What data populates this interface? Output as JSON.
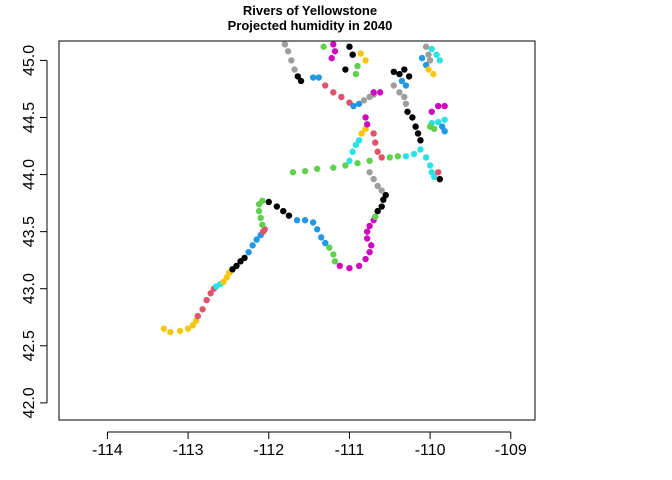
{
  "chart_data": {
    "type": "scatter",
    "title": "Rivers of Yellowstone",
    "subtitle": "Projected humidity in 2040",
    "xlabel": "",
    "ylabel": "",
    "xlim": [
      -114.6,
      -108.7
    ],
    "ylim": [
      41.85,
      45.17
    ],
    "xticks": [
      -114,
      -113,
      -112,
      -111,
      -110,
      -109
    ],
    "xtick_labels": [
      "-114",
      "-113",
      "-112",
      "-111",
      "-110",
      "-109"
    ],
    "yticks": [
      42.0,
      42.5,
      43.0,
      43.5,
      44.0,
      44.5,
      45.0
    ],
    "ytick_labels": [
      "42.0",
      "42.5",
      "43.0",
      "43.5",
      "44.0",
      "44.5",
      "45.0"
    ],
    "grid": false,
    "legend": "none",
    "color_palette": {
      "black": "#000000",
      "red": "#df536b",
      "green": "#61d04f",
      "blue": "#2297e6",
      "cyan": "#28e2e5",
      "magenta": "#cd0bbc",
      "yellow": "#f5c710",
      "gray": "#9e9e9e"
    },
    "segments": [
      {
        "color": "yellow",
        "points": [
          [
            -113.3,
            42.65
          ],
          [
            -113.22,
            42.62
          ],
          [
            -113.1,
            42.63
          ],
          [
            -113.0,
            42.65
          ],
          [
            -112.94,
            42.68
          ],
          [
            -112.9,
            42.72
          ]
        ]
      },
      {
        "color": "red",
        "points": [
          [
            -112.88,
            42.76
          ],
          [
            -112.82,
            42.82
          ],
          [
            -112.77,
            42.9
          ],
          [
            -112.72,
            42.96
          ],
          [
            -112.68,
            43.0
          ]
        ]
      },
      {
        "color": "cyan",
        "points": [
          [
            -112.65,
            43.02
          ],
          [
            -112.6,
            43.04
          ]
        ]
      },
      {
        "color": "yellow",
        "points": [
          [
            -112.56,
            43.06
          ],
          [
            -112.52,
            43.1
          ],
          [
            -112.49,
            43.14
          ]
        ]
      },
      {
        "color": "black",
        "points": [
          [
            -112.45,
            43.17
          ],
          [
            -112.4,
            43.2
          ],
          [
            -112.35,
            43.24
          ],
          [
            -112.3,
            43.27
          ]
        ]
      },
      {
        "color": "blue",
        "points": [
          [
            -112.25,
            43.32
          ],
          [
            -112.2,
            43.38
          ],
          [
            -112.15,
            43.43
          ],
          [
            -112.1,
            43.47
          ]
        ]
      },
      {
        "color": "red",
        "points": [
          [
            -112.07,
            43.5
          ],
          [
            -112.05,
            43.52
          ]
        ]
      },
      {
        "color": "green",
        "points": [
          [
            -112.08,
            43.56
          ],
          [
            -112.1,
            43.62
          ],
          [
            -112.12,
            43.68
          ],
          [
            -112.12,
            43.74
          ],
          [
            -112.08,
            43.77
          ]
        ]
      },
      {
        "color": "black",
        "points": [
          [
            -112.0,
            43.76
          ],
          [
            -111.9,
            43.72
          ],
          [
            -111.82,
            43.68
          ],
          [
            -111.75,
            43.64
          ]
        ]
      },
      {
        "color": "blue",
        "points": [
          [
            -111.65,
            43.6
          ],
          [
            -111.55,
            43.6
          ],
          [
            -111.45,
            43.58
          ],
          [
            -111.4,
            43.52
          ],
          [
            -111.35,
            43.45
          ],
          [
            -111.3,
            43.4
          ]
        ]
      },
      {
        "color": "green",
        "points": [
          [
            -111.25,
            43.36
          ],
          [
            -111.2,
            43.3
          ],
          [
            -111.18,
            43.24
          ]
        ]
      },
      {
        "color": "magenta",
        "points": [
          [
            -111.12,
            43.2
          ],
          [
            -111.0,
            43.18
          ],
          [
            -110.88,
            43.2
          ],
          [
            -110.8,
            43.26
          ],
          [
            -110.75,
            43.32
          ],
          [
            -110.73,
            43.38
          ],
          [
            -110.78,
            43.44
          ]
        ]
      },
      {
        "color": "magenta",
        "points": [
          [
            -110.78,
            43.5
          ],
          [
            -110.75,
            43.55
          ],
          [
            -110.7,
            43.6
          ]
        ]
      },
      {
        "color": "green",
        "points": [
          [
            -110.68,
            43.63
          ]
        ]
      },
      {
        "color": "black",
        "points": [
          [
            -110.65,
            43.68
          ],
          [
            -110.6,
            43.72
          ],
          [
            -110.58,
            43.78
          ],
          [
            -110.55,
            43.82
          ]
        ]
      },
      {
        "color": "gray",
        "points": [
          [
            -110.6,
            43.86
          ],
          [
            -110.65,
            43.9
          ],
          [
            -110.7,
            43.96
          ],
          [
            -110.75,
            44.02
          ]
        ]
      },
      {
        "color": "green",
        "points": [
          [
            -111.7,
            44.02
          ],
          [
            -111.55,
            44.03
          ],
          [
            -111.4,
            44.05
          ],
          [
            -111.2,
            44.06
          ],
          [
            -111.05,
            44.08
          ],
          [
            -110.9,
            44.1
          ],
          [
            -110.75,
            44.12
          ],
          [
            -110.5,
            44.15
          ],
          [
            -110.4,
            44.16
          ]
        ]
      },
      {
        "color": "cyan",
        "points": [
          [
            -110.3,
            44.16
          ],
          [
            -110.2,
            44.18
          ],
          [
            -110.12,
            44.22
          ],
          [
            -110.05,
            44.15
          ],
          [
            -110.0,
            44.08
          ],
          [
            -109.98,
            44.02
          ],
          [
            -109.95,
            43.98
          ]
        ]
      },
      {
        "color": "red",
        "points": [
          [
            -109.9,
            44.02
          ]
        ]
      },
      {
        "color": "black",
        "points": [
          [
            -109.88,
            43.96
          ]
        ]
      },
      {
        "color": "cyan",
        "points": [
          [
            -111.0,
            44.12
          ],
          [
            -110.96,
            44.2
          ],
          [
            -110.92,
            44.26
          ],
          [
            -110.88,
            44.3
          ]
        ]
      },
      {
        "color": "yellow",
        "points": [
          [
            -110.85,
            44.36
          ],
          [
            -110.8,
            44.4
          ]
        ]
      },
      {
        "color": "red",
        "points": [
          [
            -110.7,
            44.36
          ],
          [
            -110.68,
            44.28
          ],
          [
            -110.65,
            44.2
          ],
          [
            -110.6,
            44.15
          ]
        ]
      },
      {
        "color": "magenta",
        "points": [
          [
            -110.78,
            44.44
          ],
          [
            -110.8,
            44.5
          ]
        ]
      },
      {
        "color": "gray",
        "points": [
          [
            -111.8,
            45.14
          ],
          [
            -111.76,
            45.08
          ],
          [
            -111.72,
            45.0
          ],
          [
            -111.68,
            44.92
          ]
        ]
      },
      {
        "color": "black",
        "points": [
          [
            -111.64,
            44.86
          ],
          [
            -111.6,
            44.82
          ]
        ]
      },
      {
        "color": "blue",
        "points": [
          [
            -111.45,
            44.85
          ],
          [
            -111.38,
            44.85
          ]
        ]
      },
      {
        "color": "red",
        "points": [
          [
            -111.3,
            44.78
          ],
          [
            -111.2,
            44.72
          ],
          [
            -111.1,
            44.68
          ],
          [
            -111.0,
            44.63
          ]
        ]
      },
      {
        "color": "blue",
        "points": [
          [
            -110.95,
            44.6
          ],
          [
            -110.88,
            44.62
          ]
        ]
      },
      {
        "color": "gray",
        "points": [
          [
            -110.82,
            44.65
          ],
          [
            -110.75,
            44.68
          ],
          [
            -110.7,
            44.7
          ]
        ]
      },
      {
        "color": "magenta",
        "points": [
          [
            -110.7,
            44.72
          ],
          [
            -110.62,
            44.72
          ]
        ]
      },
      {
        "color": "green",
        "points": [
          [
            -111.32,
            45.12
          ]
        ]
      },
      {
        "color": "magenta",
        "points": [
          [
            -111.22,
            45.02
          ],
          [
            -111.18,
            45.08
          ],
          [
            -111.2,
            45.14
          ]
        ]
      },
      {
        "color": "black",
        "points": [
          [
            -111.0,
            45.12
          ],
          [
            -110.96,
            45.05
          ],
          [
            -111.05,
            44.92
          ]
        ]
      },
      {
        "color": "green",
        "points": [
          [
            -110.9,
            44.95
          ],
          [
            -110.92,
            44.88
          ]
        ]
      },
      {
        "color": "yellow",
        "points": [
          [
            -110.86,
            45.06
          ],
          [
            -110.8,
            45.0
          ]
        ]
      },
      {
        "color": "black",
        "points": [
          [
            -110.45,
            44.9
          ],
          [
            -110.38,
            44.88
          ],
          [
            -110.32,
            44.92
          ],
          [
            -110.26,
            44.86
          ]
        ]
      },
      {
        "color": "gray",
        "points": [
          [
            -110.45,
            44.78
          ],
          [
            -110.38,
            44.72
          ],
          [
            -110.32,
            44.68
          ],
          [
            -110.3,
            44.62
          ]
        ]
      },
      {
        "color": "black",
        "points": [
          [
            -110.28,
            44.55
          ],
          [
            -110.22,
            44.5
          ],
          [
            -110.18,
            44.42
          ],
          [
            -110.15,
            44.36
          ],
          [
            -110.12,
            44.3
          ]
        ]
      },
      {
        "color": "blue",
        "points": [
          [
            -110.35,
            44.82
          ],
          [
            -110.3,
            44.78
          ]
        ]
      },
      {
        "color": "gray",
        "points": [
          [
            -110.05,
            45.12
          ],
          [
            -110.02,
            45.05
          ],
          [
            -110.0,
            45.0
          ]
        ]
      },
      {
        "color": "cyan",
        "points": [
          [
            -109.98,
            45.1
          ],
          [
            -109.92,
            45.05
          ],
          [
            -109.88,
            45.0
          ]
        ]
      },
      {
        "color": "blue",
        "points": [
          [
            -110.1,
            45.02
          ],
          [
            -110.05,
            44.96
          ]
        ]
      },
      {
        "color": "yellow",
        "points": [
          [
            -110.02,
            44.92
          ],
          [
            -109.96,
            44.88
          ]
        ]
      },
      {
        "color": "magenta",
        "points": [
          [
            -109.98,
            44.55
          ],
          [
            -109.9,
            44.6
          ],
          [
            -109.82,
            44.6
          ]
        ]
      },
      {
        "color": "cyan",
        "points": [
          [
            -109.98,
            44.45
          ],
          [
            -109.9,
            44.46
          ],
          [
            -109.82,
            44.48
          ]
        ]
      },
      {
        "color": "blue",
        "points": [
          [
            -109.85,
            44.42
          ],
          [
            -109.82,
            44.38
          ]
        ]
      },
      {
        "color": "green",
        "points": [
          [
            -110.0,
            44.42
          ],
          [
            -109.95,
            44.4
          ]
        ]
      }
    ]
  }
}
